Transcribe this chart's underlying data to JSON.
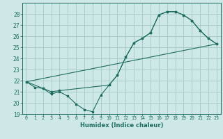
{
  "bg_color": "#cde8e6",
  "grid_color": "#a8ceca",
  "line_color": "#1e6b5e",
  "xlabel": "Humidex (Indice chaleur)",
  "xlim": [
    -0.5,
    23.5
  ],
  "ylim": [
    19,
    29
  ],
  "yticks": [
    19,
    20,
    21,
    22,
    23,
    24,
    25,
    26,
    27,
    28
  ],
  "xticks": [
    0,
    1,
    2,
    3,
    4,
    5,
    6,
    7,
    8,
    9,
    10,
    11,
    12,
    13,
    14,
    15,
    16,
    17,
    18,
    19,
    20,
    21,
    22,
    23
  ],
  "series1_x": [
    0,
    1,
    2,
    3,
    4,
    5,
    6,
    7,
    8,
    9,
    10,
    11,
    12,
    13,
    14,
    15,
    16,
    17,
    18,
    19,
    20,
    21,
    22,
    23
  ],
  "series1_y": [
    21.9,
    21.4,
    21.3,
    20.8,
    21.0,
    20.6,
    19.9,
    19.4,
    19.2,
    20.7,
    21.6,
    22.5,
    24.1,
    25.4,
    25.8,
    26.3,
    27.9,
    28.2,
    28.2,
    27.9,
    27.4,
    26.5,
    25.8,
    25.3
  ],
  "series2_x": [
    0,
    2,
    3,
    4,
    10,
    11,
    12,
    13,
    14,
    15,
    16,
    17,
    18,
    19,
    20,
    21,
    22,
    23
  ],
  "series2_y": [
    21.9,
    21.3,
    21.0,
    21.1,
    21.6,
    22.5,
    24.1,
    25.4,
    25.8,
    26.3,
    27.9,
    28.2,
    28.2,
    27.9,
    27.4,
    26.5,
    25.8,
    25.3
  ],
  "series3_x": [
    0,
    23
  ],
  "series3_y": [
    21.9,
    25.3
  ]
}
